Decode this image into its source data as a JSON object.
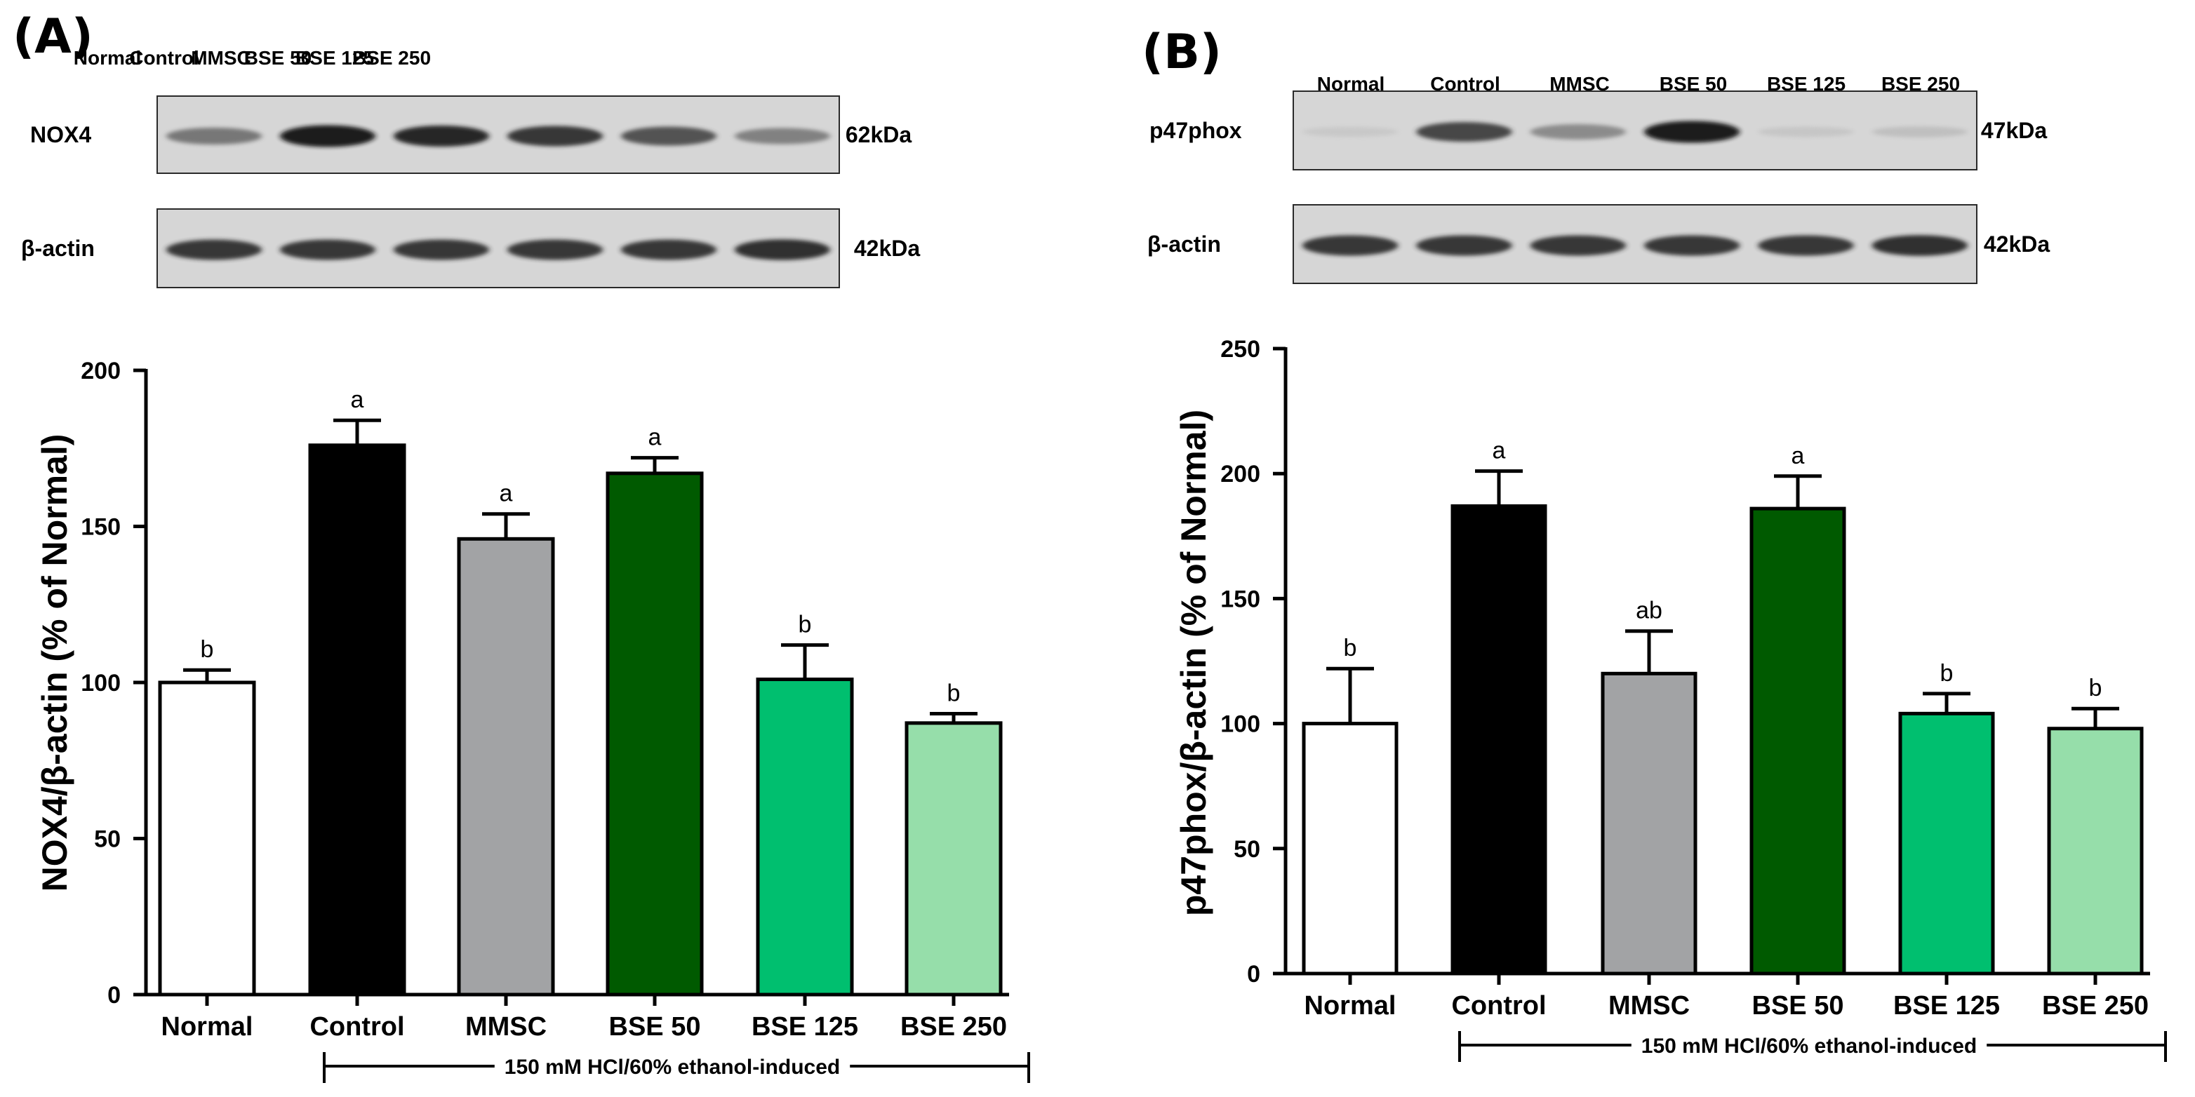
{
  "colors": {
    "Normal": "#ffffff",
    "Control": "#000000",
    "MMSC": "#a2a3a5",
    "BSE 50": "#005a00",
    "BSE 125": "#00bf6f",
    "BSE 250": "#96deaa"
  },
  "panels": [
    {
      "letter": "(A)",
      "blot": {
        "lanes": [
          "Normal",
          "Control",
          "MMSC",
          "BSE 50",
          "BSE 125",
          "BSE 250"
        ],
        "rows": [
          {
            "label": "NOX4",
            "kda": "62kDa",
            "intensity": [
              0.6,
              0.95,
              0.9,
              0.85,
              0.75,
              0.55
            ]
          },
          {
            "label": "β-actin",
            "kda": "42kDa",
            "intensity": [
              0.85,
              0.85,
              0.85,
              0.85,
              0.85,
              0.88
            ]
          }
        ]
      },
      "chart_data": {
        "type": "bar",
        "categories": [
          "Normal",
          "Control",
          "MMSC",
          "BSE 50",
          "BSE 125",
          "BSE 250"
        ],
        "values": [
          100,
          176,
          146,
          167,
          101,
          87
        ],
        "errors": [
          4,
          8,
          8,
          5,
          11,
          3
        ],
        "significance": [
          "b",
          "a",
          "a",
          "a",
          "b",
          "b"
        ],
        "ylabel": "NOX4/β-actin (% of  Normal)",
        "ylim": [
          0,
          200
        ],
        "yticks": [
          "0",
          "50",
          "100",
          "150",
          "200"
        ],
        "bracket_label": "150 mM HCl/60% ethanol-induced"
      }
    },
    {
      "letter": "(B)",
      "blot": {
        "lanes": [
          "Normal",
          "Control",
          "MMSC",
          "BSE 50",
          "BSE 125",
          "BSE 250"
        ],
        "rows": [
          {
            "label": "p47phox",
            "kda": "47kDa",
            "intensity": [
              0.1,
              0.8,
              0.5,
              0.95,
              0.12,
              0.18
            ]
          },
          {
            "label": "β-actin",
            "kda": "42kDa",
            "intensity": [
              0.85,
              0.85,
              0.85,
              0.85,
              0.85,
              0.88
            ]
          }
        ]
      },
      "chart_data": {
        "type": "bar",
        "categories": [
          "Normal",
          "Control",
          "MMSC",
          "BSE 50",
          "BSE 125",
          "BSE 250"
        ],
        "values": [
          100,
          187,
          120,
          186,
          104,
          98
        ],
        "errors": [
          22,
          14,
          17,
          13,
          8,
          8
        ],
        "significance": [
          "b",
          "a",
          "ab",
          "a",
          "b",
          "b"
        ],
        "ylabel": "p47phox/β-actin (% of  Normal)",
        "ylim": [
          0,
          250
        ],
        "yticks": [
          "0",
          "50",
          "100",
          "150",
          "200",
          "250"
        ],
        "bracket_label": "150 mM HCl/60% ethanol-induced"
      }
    }
  ]
}
